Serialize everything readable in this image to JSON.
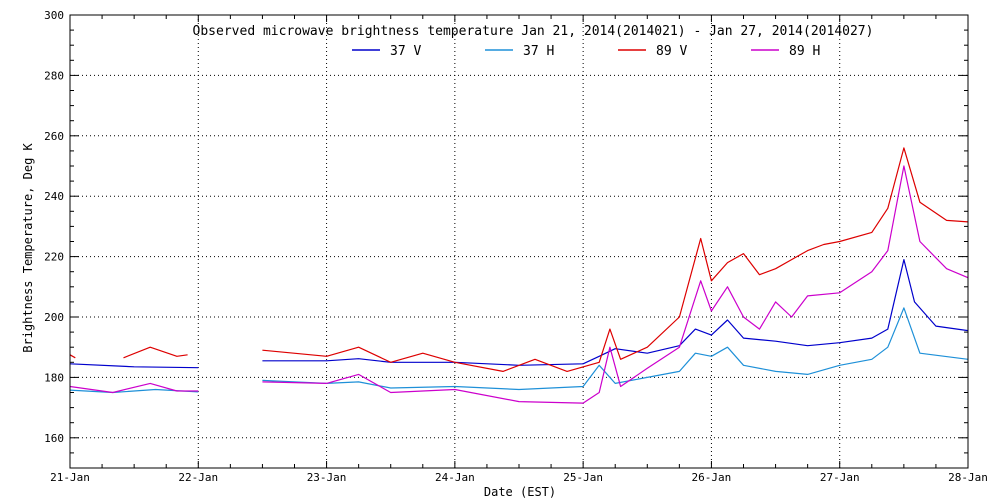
{
  "chart_data": {
    "type": "line",
    "title": "Observed microwave brightness temperature Jan 21, 2014(2014021) - Jan 27, 2014(2014027)",
    "xlabel": "Date (EST)",
    "ylabel": "Brightness Temperature, Deg K",
    "x_ticks": [
      "21-Jan",
      "22-Jan",
      "23-Jan",
      "24-Jan",
      "25-Jan",
      "26-Jan",
      "27-Jan",
      "28-Jan"
    ],
    "xlim": [
      "2014-01-21",
      "2014-01-28"
    ],
    "ylim": [
      150,
      300
    ],
    "y_ticks": [
      "160",
      "180",
      "200",
      "220",
      "240",
      "260",
      "280",
      "300"
    ],
    "grid": true,
    "legend_placement": "top-center",
    "colors": {
      "37 V": "#0000cc",
      "37 H": "#1e90d8",
      "89 V": "#dd0000",
      "89 H": "#cc00cc"
    },
    "series": [
      {
        "name": "37 V",
        "segments": [
          [
            [
              "2014-01-21T00:00",
              184.5
            ],
            [
              "2014-01-21T12:00",
              183.5
            ],
            [
              "2014-01-22T00:00",
              183.2
            ]
          ],
          [
            [
              "2014-01-22T12:00",
              185.5
            ],
            [
              "2014-01-23T00:00",
              185.5
            ],
            [
              "2014-01-23T06:00",
              186.2
            ],
            [
              "2014-01-23T12:00",
              185.0
            ],
            [
              "2014-01-24T00:00",
              185.0
            ],
            [
              "2014-01-24T12:00",
              184.0
            ],
            [
              "2014-01-25T00:00",
              184.5
            ],
            [
              "2014-01-25T03:00",
              187.0
            ],
            [
              "2014-01-25T06:00",
              189.5
            ],
            [
              "2014-01-25T12:00",
              188.0
            ],
            [
              "2014-01-25T18:00",
              190.5
            ],
            [
              "2014-01-25T21:00",
              196.0
            ],
            [
              "2014-01-26T00:00",
              194.0
            ],
            [
              "2014-01-26T03:00",
              199.0
            ],
            [
              "2014-01-26T06:00",
              193.0
            ],
            [
              "2014-01-26T12:00",
              192.0
            ],
            [
              "2014-01-26T18:00",
              190.5
            ],
            [
              "2014-01-27T00:00",
              191.5
            ],
            [
              "2014-01-27T06:00",
              193.0
            ],
            [
              "2014-01-27T09:00",
              196.0
            ],
            [
              "2014-01-27T12:00",
              219.0
            ],
            [
              "2014-01-27T14:00",
              205.0
            ],
            [
              "2014-01-27T18:00",
              197.0
            ],
            [
              "2014-01-28T00:00",
              195.5
            ]
          ]
        ]
      },
      {
        "name": "37 H",
        "segments": [
          [
            [
              "2014-01-21T00:00",
              175.8
            ],
            [
              "2014-01-21T08:00",
              175.0
            ],
            [
              "2014-01-21T16:00",
              176.0
            ],
            [
              "2014-01-22T00:00",
              175.2
            ]
          ],
          [
            [
              "2014-01-22T12:00",
              179.0
            ],
            [
              "2014-01-23T00:00",
              178.0
            ],
            [
              "2014-01-23T06:00",
              178.5
            ],
            [
              "2014-01-23T12:00",
              176.5
            ],
            [
              "2014-01-24T00:00",
              177.0
            ],
            [
              "2014-01-24T12:00",
              176.0
            ],
            [
              "2014-01-25T00:00",
              177.0
            ],
            [
              "2014-01-25T03:00",
              184.0
            ],
            [
              "2014-01-25T06:00",
              178.0
            ],
            [
              "2014-01-25T12:00",
              180.0
            ],
            [
              "2014-01-25T18:00",
              182.0
            ],
            [
              "2014-01-25T21:00",
              188.0
            ],
            [
              "2014-01-26T00:00",
              187.0
            ],
            [
              "2014-01-26T03:00",
              190.0
            ],
            [
              "2014-01-26T06:00",
              184.0
            ],
            [
              "2014-01-26T12:00",
              182.0
            ],
            [
              "2014-01-26T18:00",
              181.0
            ],
            [
              "2014-01-27T00:00",
              184.0
            ],
            [
              "2014-01-27T06:00",
              186.0
            ],
            [
              "2014-01-27T09:00",
              190.0
            ],
            [
              "2014-01-27T12:00",
              203.0
            ],
            [
              "2014-01-27T15:00",
              188.0
            ],
            [
              "2014-01-28T00:00",
              186.0
            ]
          ]
        ]
      },
      {
        "name": "89 V",
        "segments": [
          [
            [
              "2014-01-21T00:00",
              187.5
            ],
            [
              "2014-01-21T01:00",
              186.5
            ]
          ],
          [
            [
              "2014-01-21T10:00",
              186.5
            ],
            [
              "2014-01-21T15:00",
              190.0
            ],
            [
              "2014-01-21T20:00",
              187.0
            ],
            [
              "2014-01-21T22:00",
              187.5
            ]
          ],
          [
            [
              "2014-01-22T12:00",
              189.0
            ],
            [
              "2014-01-23T00:00",
              187.0
            ],
            [
              "2014-01-23T06:00",
              190.0
            ],
            [
              "2014-01-23T12:00",
              185.0
            ],
            [
              "2014-01-23T18:00",
              188.0
            ],
            [
              "2014-01-24T00:00",
              185.0
            ],
            [
              "2014-01-24T09:00",
              182.0
            ],
            [
              "2014-01-24T15:00",
              186.0
            ],
            [
              "2014-01-24T21:00",
              182.0
            ],
            [
              "2014-01-25T03:00",
              185.0
            ],
            [
              "2014-01-25T05:00",
              196.0
            ],
            [
              "2014-01-25T07:00",
              186.0
            ],
            [
              "2014-01-25T12:00",
              190.0
            ],
            [
              "2014-01-25T18:00",
              200.0
            ],
            [
              "2014-01-25T22:00",
              226.0
            ],
            [
              "2014-01-26T00:00",
              212.0
            ],
            [
              "2014-01-26T03:00",
              218.0
            ],
            [
              "2014-01-26T06:00",
              221.0
            ],
            [
              "2014-01-26T09:00",
              214.0
            ],
            [
              "2014-01-26T12:00",
              216.0
            ],
            [
              "2014-01-26T15:00",
              219.0
            ],
            [
              "2014-01-26T18:00",
              222.0
            ],
            [
              "2014-01-26T21:00",
              224.0
            ],
            [
              "2014-01-27T00:00",
              225.0
            ],
            [
              "2014-01-27T06:00",
              228.0
            ],
            [
              "2014-01-27T09:00",
              236.0
            ],
            [
              "2014-01-27T12:00",
              256.0
            ],
            [
              "2014-01-27T15:00",
              238.0
            ],
            [
              "2014-01-27T20:00",
              232.0
            ],
            [
              "2014-01-28T00:00",
              231.5
            ]
          ]
        ]
      },
      {
        "name": "89 H",
        "segments": [
          [
            [
              "2014-01-21T00:00",
              177.0
            ],
            [
              "2014-01-21T08:00",
              175.0
            ],
            [
              "2014-01-21T15:00",
              178.0
            ],
            [
              "2014-01-21T20:00",
              175.5
            ],
            [
              "2014-01-22T00:00",
              175.5
            ]
          ],
          [
            [
              "2014-01-22T12:00",
              178.5
            ],
            [
              "2014-01-23T00:00",
              178.0
            ],
            [
              "2014-01-23T06:00",
              181.0
            ],
            [
              "2014-01-23T12:00",
              175.0
            ],
            [
              "2014-01-24T00:00",
              176.0
            ],
            [
              "2014-01-24T12:00",
              172.0
            ],
            [
              "2014-01-25T00:00",
              171.5
            ],
            [
              "2014-01-25T03:00",
              175.0
            ],
            [
              "2014-01-25T05:00",
              190.0
            ],
            [
              "2014-01-25T07:00",
              177.0
            ],
            [
              "2014-01-25T12:00",
              183.0
            ],
            [
              "2014-01-25T18:00",
              190.0
            ],
            [
              "2014-01-25T22:00",
              212.0
            ],
            [
              "2014-01-26T00:00",
              202.0
            ],
            [
              "2014-01-26T03:00",
              210.0
            ],
            [
              "2014-01-26T06:00",
              200.0
            ],
            [
              "2014-01-26T09:00",
              196.0
            ],
            [
              "2014-01-26T12:00",
              205.0
            ],
            [
              "2014-01-26T15:00",
              200.0
            ],
            [
              "2014-01-26T18:00",
              207.0
            ],
            [
              "2014-01-27T00:00",
              208.0
            ],
            [
              "2014-01-27T06:00",
              215.0
            ],
            [
              "2014-01-27T09:00",
              222.0
            ],
            [
              "2014-01-27T12:00",
              250.0
            ],
            [
              "2014-01-27T15:00",
              225.0
            ],
            [
              "2014-01-27T20:00",
              216.0
            ],
            [
              "2014-01-28T00:00",
              213.0
            ]
          ]
        ]
      }
    ]
  }
}
